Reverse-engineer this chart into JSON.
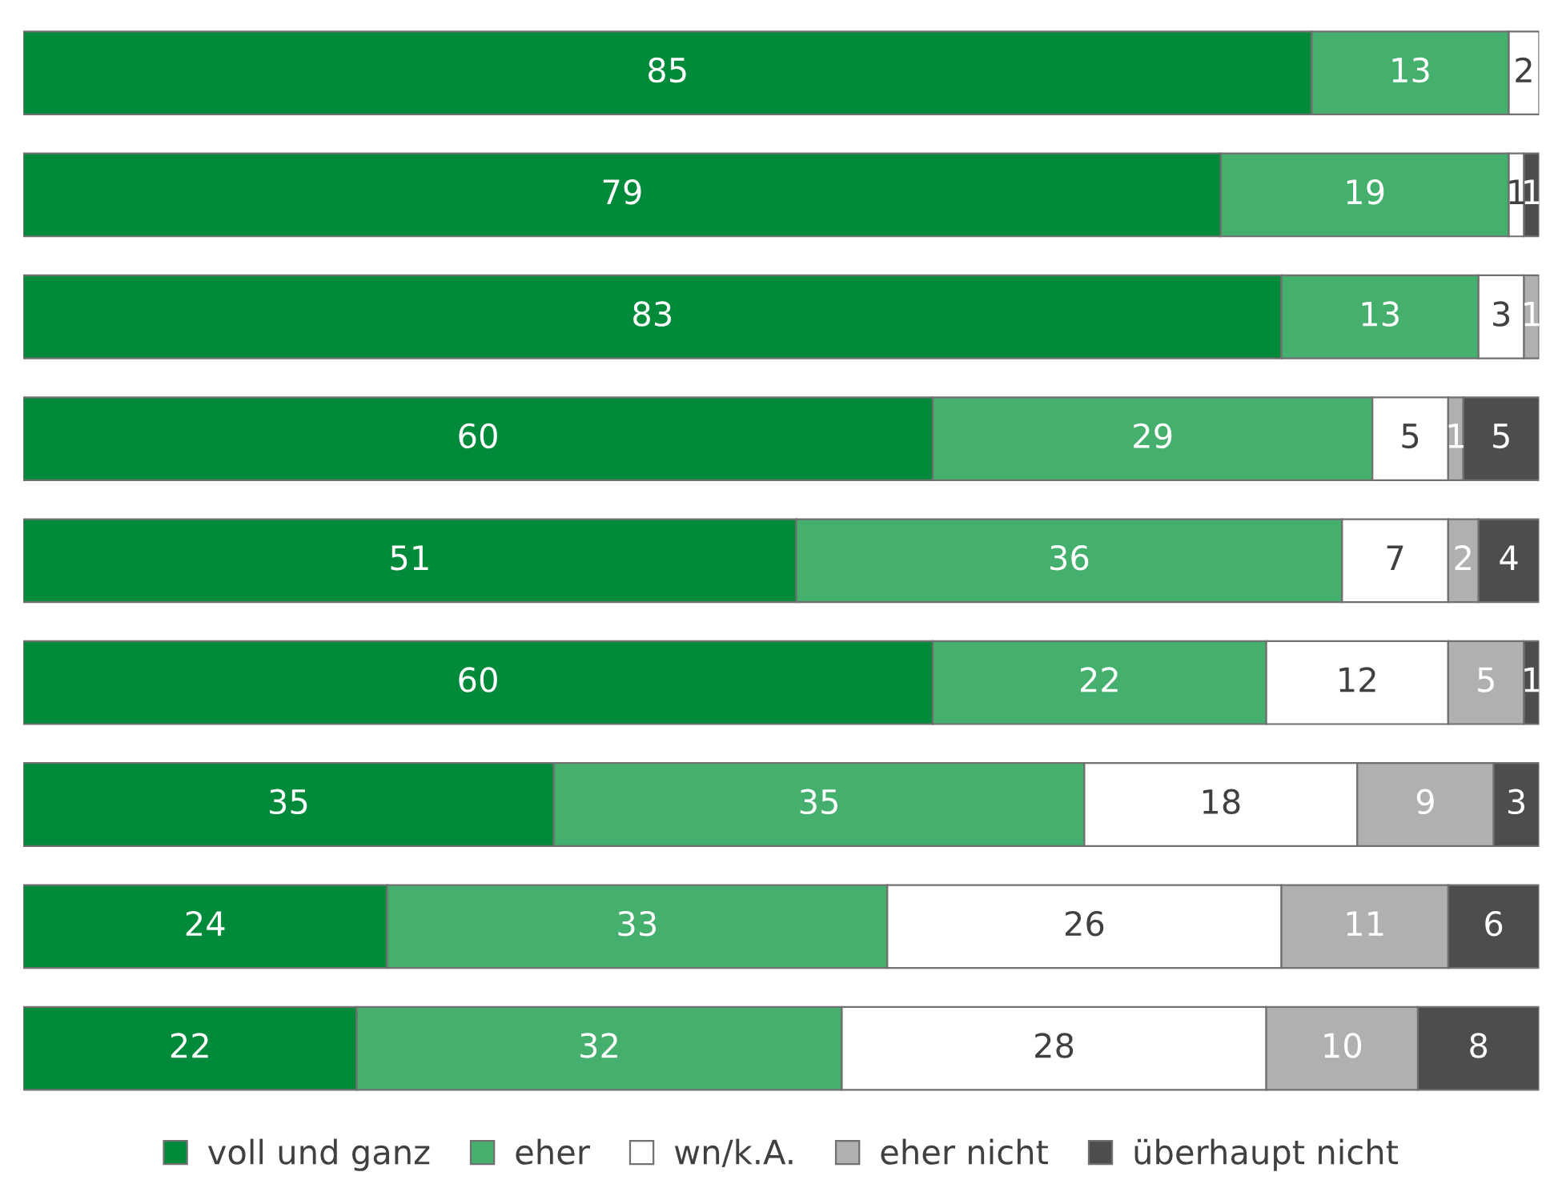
{
  "chart_data": {
    "type": "bar",
    "orientation": "horizontal",
    "stacked": true,
    "data_labels": true,
    "legend": "bottom",
    "grid": false,
    "tick_labels": false,
    "xlim": [
      0,
      100
    ],
    "categories": [
      null,
      null,
      null,
      null,
      null,
      null,
      null,
      null,
      null
    ],
    "series": [
      {
        "name": "voll und ganz",
        "color": "#008a3a",
        "values": [
          85,
          79,
          83,
          60,
          51,
          60,
          35,
          24,
          22
        ]
      },
      {
        "name": "eher",
        "color": "#45b06e",
        "values": [
          13,
          19,
          13,
          29,
          36,
          22,
          35,
          33,
          32
        ]
      },
      {
        "name": "wn/k.A.",
        "color": "#ffffff",
        "values": [
          2,
          1,
          3,
          5,
          7,
          12,
          18,
          26,
          28
        ]
      },
      {
        "name": "eher nicht",
        "color": "#b0b0b0",
        "values": [
          null,
          null,
          1,
          1,
          2,
          5,
          9,
          11,
          10
        ]
      },
      {
        "name": "überhaupt nicht",
        "color": "#4d4d4d",
        "values": [
          null,
          1,
          null,
          5,
          4,
          1,
          3,
          6,
          8
        ]
      }
    ]
  }
}
